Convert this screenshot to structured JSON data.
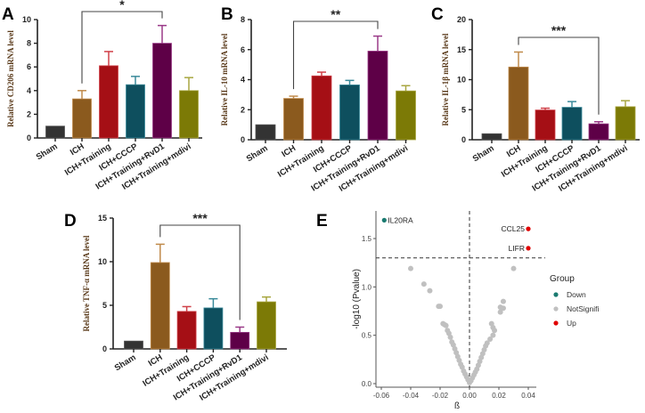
{
  "chart_data": [
    {
      "panel": "A",
      "type": "bar",
      "categories": [
        "Sham",
        "ICH",
        "ICH+Training",
        "ICH+CCCP",
        "ICH+Training+RvD1",
        "ICH+Training+mdivi"
      ],
      "values": [
        1.0,
        3.3,
        6.1,
        4.5,
        8.0,
        4.0
      ],
      "errors": [
        0,
        0.7,
        1.2,
        0.7,
        1.5,
        1.1
      ],
      "ylabel": "Relative CD206 mRNA level",
      "ylim": [
        0,
        10
      ],
      "yticks": [
        0,
        2,
        4,
        6,
        8,
        10
      ],
      "significance": {
        "from": "ICH",
        "to": "ICH+Training+RvD1",
        "label": "*"
      }
    },
    {
      "panel": "B",
      "type": "bar",
      "categories": [
        "Sham",
        "ICH",
        "ICH+Training",
        "ICH+CCCP",
        "ICH+Training+RvD1",
        "ICH+Training+mdivi"
      ],
      "values": [
        1.0,
        2.75,
        4.25,
        3.65,
        5.9,
        3.25
      ],
      "errors": [
        0,
        0.15,
        0.25,
        0.3,
        1.0,
        0.35
      ],
      "ylabel": "Relative IL-10 mRNA level",
      "ylim": [
        0,
        8
      ],
      "yticks": [
        0,
        2,
        4,
        6,
        8
      ],
      "significance": {
        "from": "ICH",
        "to": "ICH+Training+RvD1",
        "label": "**"
      }
    },
    {
      "panel": "C",
      "type": "bar",
      "categories": [
        "Sham",
        "ICH",
        "ICH+Training",
        "ICH+CCCP",
        "ICH+Training+RvD1",
        "ICH+Training+mdivi"
      ],
      "values": [
        1.0,
        12.1,
        4.95,
        5.4,
        2.65,
        5.5
      ],
      "errors": [
        0,
        2.5,
        0.3,
        0.95,
        0.35,
        1.0
      ],
      "ylabel": "Relative IL-1β mRNA level",
      "ylim": [
        0,
        20
      ],
      "yticks": [
        0,
        5,
        10,
        15,
        20
      ],
      "significance": {
        "from": "ICH",
        "to": "ICH+Training+RvD1",
        "label": "***"
      }
    },
    {
      "panel": "D",
      "type": "bar",
      "categories": [
        "Sham",
        "ICH",
        "ICH+Training",
        "ICH+CCCP",
        "ICH+Training+RvD1",
        "ICH+Training+mdivi"
      ],
      "values": [
        0.9,
        9.9,
        4.3,
        4.7,
        1.9,
        5.4
      ],
      "errors": [
        0,
        2.1,
        0.55,
        1.05,
        0.6,
        0.55
      ],
      "ylabel": "Relative TNF-α mRNA level",
      "ylim": [
        0,
        15
      ],
      "yticks": [
        0,
        5,
        10,
        15
      ],
      "significance": {
        "from": "ICH",
        "to": "ICH+Training+RvD1",
        "label": "***"
      }
    },
    {
      "panel": "E",
      "type": "scatter",
      "xlabel": "ß",
      "ylabel": "-log10 (Pvalue)",
      "xlim": [
        -0.062,
        0.045
      ],
      "ylim": [
        0,
        1.75
      ],
      "xticks": [
        "-0.06",
        "-0.04",
        "-0.02",
        "0.00",
        "0.02",
        "0.04"
      ],
      "yticks": [
        "0.0",
        "0.5",
        "1.0",
        "1.5"
      ],
      "threshold_y": 1.3,
      "threshold_x": 0.0,
      "legend": {
        "title": "Group",
        "position": "right",
        "entries": [
          {
            "label": "Down",
            "color": "#1a7a70"
          },
          {
            "label": "NotSignifi",
            "color": "#c0c0c0"
          },
          {
            "label": "Up",
            "color": "#e00000"
          }
        ]
      },
      "labeled_points": [
        {
          "label": "IL20RA",
          "x": -0.058,
          "y": 1.69,
          "group": "Down"
        },
        {
          "label": "CCL25",
          "x": 0.04,
          "y": 1.6,
          "group": "Up"
        },
        {
          "label": "LIFR",
          "x": 0.04,
          "y": 1.4,
          "group": "Up"
        }
      ],
      "points": [
        [
          -0.04,
          1.19
        ],
        [
          -0.031,
          1.03
        ],
        [
          -0.027,
          0.96
        ],
        [
          -0.021,
          0.8
        ],
        [
          -0.02,
          0.8
        ],
        [
          -0.018,
          0.62
        ],
        [
          -0.017,
          0.61
        ],
        [
          -0.016,
          0.6
        ],
        [
          -0.015,
          0.55
        ],
        [
          -0.014,
          0.52
        ],
        [
          -0.013,
          0.48
        ],
        [
          -0.012,
          0.43
        ],
        [
          -0.011,
          0.4
        ],
        [
          -0.01,
          0.36
        ],
        [
          -0.009,
          0.32
        ],
        [
          -0.008,
          0.28
        ],
        [
          -0.007,
          0.24
        ],
        [
          -0.006,
          0.2
        ],
        [
          -0.005,
          0.17
        ],
        [
          -0.004,
          0.13
        ],
        [
          -0.003,
          0.1
        ],
        [
          -0.002,
          0.07
        ],
        [
          -0.001,
          0.04
        ],
        [
          0.0,
          0.01
        ],
        [
          0.001,
          0.03
        ],
        [
          0.002,
          0.06
        ],
        [
          0.003,
          0.09
        ],
        [
          0.004,
          0.12
        ],
        [
          0.005,
          0.15
        ],
        [
          0.006,
          0.19
        ],
        [
          0.007,
          0.23
        ],
        [
          0.008,
          0.27
        ],
        [
          0.009,
          0.31
        ],
        [
          0.01,
          0.35
        ],
        [
          0.011,
          0.39
        ],
        [
          0.012,
          0.42
        ],
        [
          0.014,
          0.46
        ],
        [
          0.016,
          0.5
        ],
        [
          0.017,
          0.55
        ],
        [
          0.016,
          0.58
        ],
        [
          0.015,
          0.62
        ],
        [
          0.021,
          0.74
        ],
        [
          0.021,
          0.79
        ],
        [
          0.023,
          0.78
        ],
        [
          0.023,
          0.85
        ],
        [
          0.03,
          1.19
        ]
      ]
    }
  ],
  "bar_colors": [
    "#333333",
    "#8b5a1e",
    "#a50f15",
    "#0e4f5e",
    "#5e0047",
    "#7c7a06"
  ],
  "err_colors": [
    "#555555",
    "#c08a4a",
    "#d04048",
    "#3a8a9a",
    "#9a3a88",
    "#a8a640"
  ]
}
